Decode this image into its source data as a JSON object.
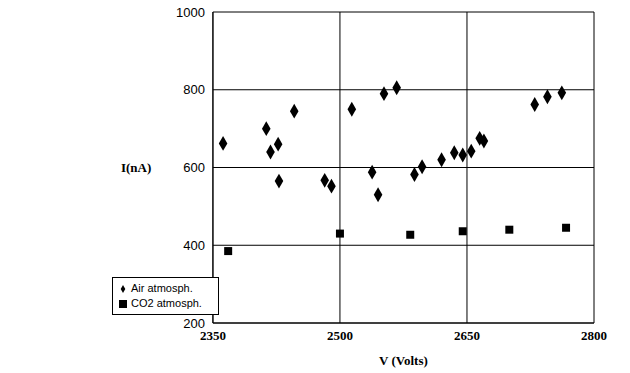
{
  "chart_data": {
    "type": "scatter",
    "x_label": "V (Volts)",
    "y_label": "I(nA)",
    "xlim": [
      2350,
      2800
    ],
    "xticks": [
      2350,
      2500,
      2650,
      2800
    ],
    "ylim": [
      200,
      1000
    ],
    "yticks": [
      200,
      400,
      600,
      800,
      1000
    ],
    "grid": true,
    "legend": "lower left",
    "series": [
      {
        "name": "Air atmosph.",
        "color": "#000000",
        "marker": "diamond",
        "x": [
          2362,
          2413,
          2418,
          2427,
          2428,
          2446,
          2482,
          2490,
          2514,
          2538,
          2545,
          2552,
          2567,
          2588,
          2597,
          2620,
          2635,
          2645,
          2655,
          2665,
          2670,
          2730,
          2745,
          2762
        ],
        "values": [
          662,
          700,
          640,
          660,
          565,
          745,
          567,
          552,
          750,
          588,
          530,
          790,
          805,
          582,
          602,
          620,
          638,
          632,
          642,
          675,
          668,
          762,
          782,
          792
        ]
      },
      {
        "name": "CO2 atmosph.",
        "color": "#000000",
        "marker": "square",
        "x": [
          2368,
          2500,
          2583,
          2645,
          2700,
          2767
        ],
        "values": [
          385,
          430,
          427,
          436,
          440,
          445
        ]
      }
    ]
  }
}
